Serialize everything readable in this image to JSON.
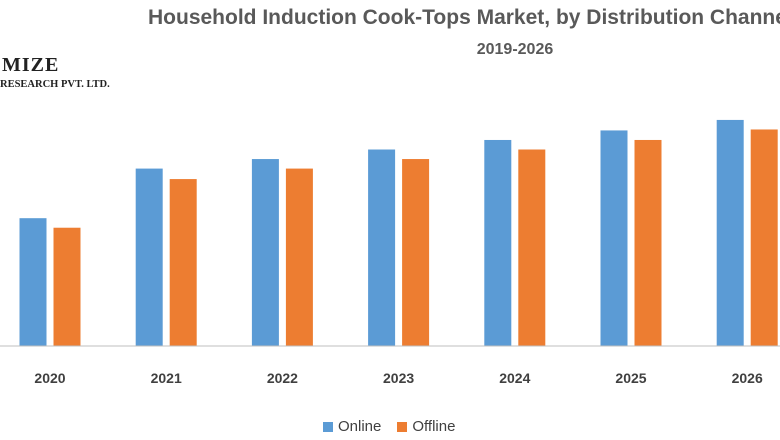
{
  "logo": {
    "main": "MIZE",
    "sub": "RESEARCH PVT. LTD."
  },
  "colors": {
    "online": "#5b9bd5",
    "offline": "#ed7d31",
    "axis": "#bfbfbf"
  },
  "chart_data": {
    "type": "bar",
    "title": "Household Induction Cook-Tops Market, by Distribution Channel",
    "subtitle": "2019-2026",
    "xlabel": "",
    "ylabel": "",
    "categories": [
      "2020",
      "2021",
      "2022",
      "2023",
      "2024",
      "2025",
      "2026"
    ],
    "series": [
      {
        "name": "Online",
        "values": [
          134,
          186,
          196,
          206,
          216,
          226,
          237
        ]
      },
      {
        "name": "Offline",
        "values": [
          124,
          175,
          186,
          196,
          206,
          216,
          227
        ]
      }
    ],
    "ylim": [
      0,
      260
    ],
    "grid": false,
    "legend": "bottom"
  }
}
